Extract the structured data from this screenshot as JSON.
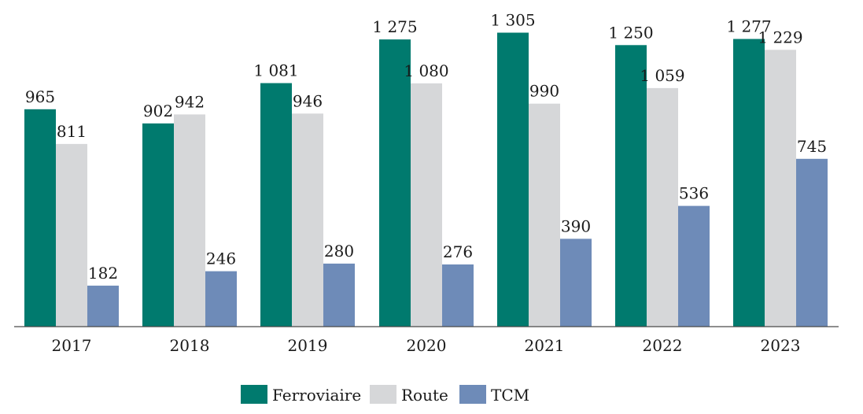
{
  "chart_data": {
    "type": "bar",
    "categories": [
      "2017",
      "2018",
      "2019",
      "2020",
      "2021",
      "2022",
      "2023"
    ],
    "series": [
      {
        "name": "Ferroviaire",
        "color": "#007a6e",
        "values": [
          965,
          902,
          1081,
          1275,
          1305,
          1250,
          1277
        ],
        "labels": [
          "965",
          "902",
          "1 081",
          "1 275",
          "1 305",
          "1 250",
          "1 277"
        ]
      },
      {
        "name": "Route",
        "color": "#d6d7d9",
        "values": [
          811,
          942,
          946,
          1080,
          990,
          1059,
          1229
        ],
        "labels": [
          "811",
          "942",
          "946",
          "1 080",
          "990",
          "1 059",
          "1 229"
        ]
      },
      {
        "name": "TCM",
        "color": "#6e8bb8",
        "values": [
          182,
          246,
          280,
          276,
          390,
          536,
          745
        ],
        "labels": [
          "182",
          "246",
          "280",
          "276",
          "390",
          "536",
          "745"
        ]
      }
    ],
    "title": "",
    "xlabel": "",
    "ylabel": "",
    "ylim": [
      0,
      1400
    ],
    "grid": false,
    "legend": "bottom-center"
  }
}
